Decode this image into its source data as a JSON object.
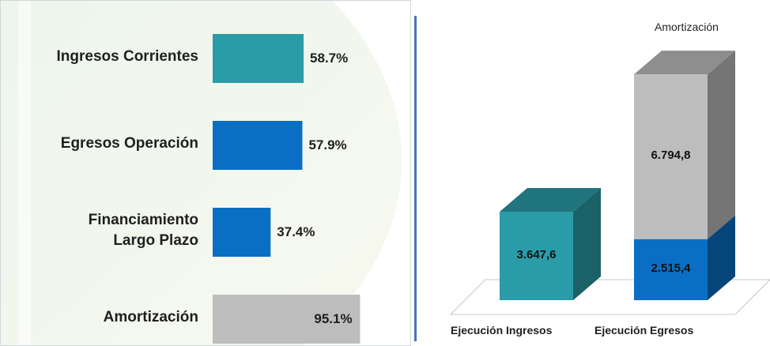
{
  "chart_data": [
    {
      "type": "bar",
      "orientation": "horizontal",
      "categories": [
        "Ingresos Corrientes",
        "Egresos Operación",
        "Financiamiento Largo Plazo",
        "Amortización"
      ],
      "category_lines": [
        [
          "Ingresos Corrientes"
        ],
        [
          "Egresos Operación"
        ],
        [
          "Financiamiento",
          "Largo Plazo"
        ],
        [
          "Amortización"
        ]
      ],
      "values": [
        58.7,
        57.9,
        37.4,
        95.1
      ],
      "value_labels": [
        "58.7%",
        "57.9%",
        "37.4%",
        "95.1%"
      ],
      "colors": [
        "#2a9ca8",
        "#0a6fc4",
        "#0a6fc4",
        "#bdbdbd"
      ],
      "xlim": [
        0,
        100
      ],
      "grid": false
    },
    {
      "type": "bar",
      "stacked": true,
      "style": "3d",
      "categories": [
        "Ejecución Ingresos",
        "Ejecución Egresos"
      ],
      "annotation": "Amortización",
      "segments": [
        {
          "category": "Ejecución Ingresos",
          "value": 3647.6,
          "label": "3.647,6",
          "color": "#2a9ca8"
        },
        {
          "category": "Ejecución Egresos",
          "value": 2515.4,
          "label": "2.515,4",
          "color": "#0a6fc4"
        },
        {
          "category": "Ejecución Egresos",
          "value": 6794.8,
          "label": "6.794,8",
          "color": "#bdbdbd"
        }
      ],
      "grid": false
    }
  ]
}
